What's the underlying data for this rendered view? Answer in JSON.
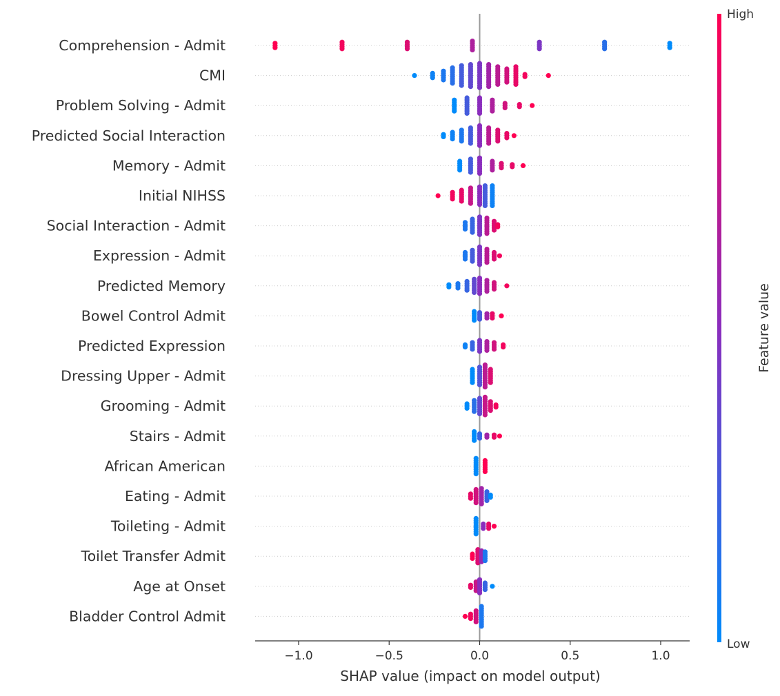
{
  "chart_data": {
    "type": "scatter",
    "subtype": "shap-beeswarm",
    "title": "",
    "xlabel": "SHAP value (impact on model output)",
    "ylabel": "",
    "xlim": [
      -1.24,
      1.16
    ],
    "xticks": [
      -1.0,
      -0.5,
      0.0,
      0.5,
      1.0
    ],
    "xtick_labels": [
      "−1.0",
      "−0.5",
      "0.0",
      "0.5",
      "1.0"
    ],
    "grid": "dotted horizontal row lines",
    "colorbar": {
      "label": "Feature value",
      "high_label": "High",
      "low_label": "Low",
      "high_color": "#ff0052",
      "mid_color": "#8a2dbd",
      "low_color": "#008bfb",
      "position": "right"
    },
    "zero_line_color": "#999999",
    "features": [
      {
        "name": "Comprehension - Admit",
        "points": [
          {
            "x": -1.13,
            "v": 1.0,
            "n": 3
          },
          {
            "x": -0.76,
            "v": 0.95,
            "n": 4
          },
          {
            "x": -0.4,
            "v": 0.85,
            "n": 4
          },
          {
            "x": -0.04,
            "v": 0.65,
            "n": 5
          },
          {
            "x": 0.33,
            "v": 0.45,
            "n": 4
          },
          {
            "x": 0.69,
            "v": 0.15,
            "n": 4
          },
          {
            "x": 1.05,
            "v": 0.0,
            "n": 3
          }
        ]
      },
      {
        "name": "CMI",
        "points": [
          {
            "x": -0.36,
            "v": 0.0,
            "n": 1
          },
          {
            "x": -0.26,
            "v": 0.05,
            "n": 3
          },
          {
            "x": -0.2,
            "v": 0.1,
            "n": 5
          },
          {
            "x": -0.15,
            "v": 0.15,
            "n": 8
          },
          {
            "x": -0.1,
            "v": 0.25,
            "n": 10
          },
          {
            "x": -0.05,
            "v": 0.35,
            "n": 11
          },
          {
            "x": 0.0,
            "v": 0.45,
            "n": 12
          },
          {
            "x": 0.05,
            "v": 0.6,
            "n": 11
          },
          {
            "x": 0.1,
            "v": 0.7,
            "n": 9
          },
          {
            "x": 0.15,
            "v": 0.8,
            "n": 7
          },
          {
            "x": 0.2,
            "v": 0.9,
            "n": 9
          },
          {
            "x": 0.25,
            "v": 0.95,
            "n": 2
          },
          {
            "x": 0.38,
            "v": 1.0,
            "n": 1
          }
        ]
      },
      {
        "name": "Problem Solving - Admit",
        "points": [
          {
            "x": -0.14,
            "v": 0.0,
            "n": 6
          },
          {
            "x": -0.07,
            "v": 0.25,
            "n": 8
          },
          {
            "x": 0.0,
            "v": 0.5,
            "n": 8
          },
          {
            "x": 0.07,
            "v": 0.65,
            "n": 6
          },
          {
            "x": 0.14,
            "v": 0.8,
            "n": 3
          },
          {
            "x": 0.22,
            "v": 0.9,
            "n": 2
          },
          {
            "x": 0.29,
            "v": 1.0,
            "n": 1
          }
        ]
      },
      {
        "name": "Predicted Social Interaction",
        "points": [
          {
            "x": -0.2,
            "v": 0.0,
            "n": 2
          },
          {
            "x": -0.15,
            "v": 0.05,
            "n": 4
          },
          {
            "x": -0.1,
            "v": 0.1,
            "n": 6
          },
          {
            "x": -0.05,
            "v": 0.25,
            "n": 8
          },
          {
            "x": 0.0,
            "v": 0.5,
            "n": 10
          },
          {
            "x": 0.05,
            "v": 0.7,
            "n": 8
          },
          {
            "x": 0.1,
            "v": 0.85,
            "n": 6
          },
          {
            "x": 0.15,
            "v": 0.9,
            "n": 3
          },
          {
            "x": 0.19,
            "v": 1.0,
            "n": 1
          }
        ]
      },
      {
        "name": "Memory - Admit",
        "points": [
          {
            "x": -0.11,
            "v": 0.0,
            "n": 5
          },
          {
            "x": -0.05,
            "v": 0.25,
            "n": 7
          },
          {
            "x": 0.0,
            "v": 0.5,
            "n": 8
          },
          {
            "x": 0.07,
            "v": 0.65,
            "n": 5
          },
          {
            "x": 0.12,
            "v": 0.85,
            "n": 3
          },
          {
            "x": 0.18,
            "v": 0.9,
            "n": 2
          },
          {
            "x": 0.24,
            "v": 1.0,
            "n": 1
          }
        ]
      },
      {
        "name": "Initial NIHSS",
        "points": [
          {
            "x": -0.23,
            "v": 1.0,
            "n": 1
          },
          {
            "x": -0.15,
            "v": 0.95,
            "n": 4
          },
          {
            "x": -0.1,
            "v": 0.9,
            "n": 6
          },
          {
            "x": -0.05,
            "v": 0.75,
            "n": 8
          },
          {
            "x": 0.0,
            "v": 0.5,
            "n": 9
          },
          {
            "x": 0.03,
            "v": 0.25,
            "n": 10
          },
          {
            "x": 0.07,
            "v": 0.05,
            "n": 10
          }
        ]
      },
      {
        "name": "Social Interaction - Admit",
        "points": [
          {
            "x": -0.08,
            "v": 0.1,
            "n": 4
          },
          {
            "x": -0.04,
            "v": 0.2,
            "n": 7
          },
          {
            "x": 0.0,
            "v": 0.45,
            "n": 9
          },
          {
            "x": 0.04,
            "v": 0.7,
            "n": 8
          },
          {
            "x": 0.08,
            "v": 0.85,
            "n": 5
          },
          {
            "x": 0.1,
            "v": 0.95,
            "n": 2
          }
        ]
      },
      {
        "name": "Expression - Admit",
        "points": [
          {
            "x": -0.08,
            "v": 0.1,
            "n": 4
          },
          {
            "x": -0.04,
            "v": 0.25,
            "n": 6
          },
          {
            "x": 0.0,
            "v": 0.45,
            "n": 9
          },
          {
            "x": 0.04,
            "v": 0.7,
            "n": 7
          },
          {
            "x": 0.08,
            "v": 0.85,
            "n": 4
          },
          {
            "x": 0.11,
            "v": 0.95,
            "n": 1
          }
        ]
      },
      {
        "name": "Predicted Memory",
        "points": [
          {
            "x": -0.17,
            "v": 0.0,
            "n": 2
          },
          {
            "x": -0.12,
            "v": 0.1,
            "n": 3
          },
          {
            "x": -0.07,
            "v": 0.2,
            "n": 5
          },
          {
            "x": -0.03,
            "v": 0.35,
            "n": 7
          },
          {
            "x": 0.0,
            "v": 0.5,
            "n": 8
          },
          {
            "x": 0.04,
            "v": 0.65,
            "n": 6
          },
          {
            "x": 0.08,
            "v": 0.8,
            "n": 4
          },
          {
            "x": 0.15,
            "v": 0.95,
            "n": 1
          }
        ]
      },
      {
        "name": "Bowel Control Admit",
        "points": [
          {
            "x": -0.03,
            "v": 0.0,
            "n": 5
          },
          {
            "x": 0.0,
            "v": 0.25,
            "n": 4
          },
          {
            "x": 0.04,
            "v": 0.6,
            "n": 3
          },
          {
            "x": 0.07,
            "v": 0.9,
            "n": 3
          },
          {
            "x": 0.12,
            "v": 1.0,
            "n": 1
          }
        ]
      },
      {
        "name": "Predicted Expression",
        "points": [
          {
            "x": -0.08,
            "v": 0.05,
            "n": 2
          },
          {
            "x": -0.04,
            "v": 0.2,
            "n": 4
          },
          {
            "x": 0.0,
            "v": 0.45,
            "n": 6
          },
          {
            "x": 0.04,
            "v": 0.65,
            "n": 5
          },
          {
            "x": 0.08,
            "v": 0.8,
            "n": 4
          },
          {
            "x": 0.13,
            "v": 0.95,
            "n": 2
          }
        ]
      },
      {
        "name": "Dressing Upper - Admit",
        "points": [
          {
            "x": -0.04,
            "v": 0.0,
            "n": 7
          },
          {
            "x": 0.0,
            "v": 0.3,
            "n": 9
          },
          {
            "x": 0.03,
            "v": 0.7,
            "n": 11
          },
          {
            "x": 0.06,
            "v": 0.85,
            "n": 7
          }
        ]
      },
      {
        "name": "Grooming - Admit",
        "points": [
          {
            "x": -0.07,
            "v": 0.0,
            "n": 3
          },
          {
            "x": -0.03,
            "v": 0.15,
            "n": 6
          },
          {
            "x": 0.0,
            "v": 0.35,
            "n": 8
          },
          {
            "x": 0.03,
            "v": 0.75,
            "n": 9
          },
          {
            "x": 0.06,
            "v": 0.85,
            "n": 5
          },
          {
            "x": 0.09,
            "v": 0.95,
            "n": 2
          }
        ]
      },
      {
        "name": "Stairs - Admit",
        "points": [
          {
            "x": -0.03,
            "v": 0.0,
            "n": 5
          },
          {
            "x": 0.0,
            "v": 0.2,
            "n": 3
          },
          {
            "x": 0.04,
            "v": 0.6,
            "n": 2
          },
          {
            "x": 0.08,
            "v": 0.9,
            "n": 2
          },
          {
            "x": 0.11,
            "v": 1.0,
            "n": 1
          }
        ]
      },
      {
        "name": "African American",
        "points": [
          {
            "x": -0.02,
            "v": 0.0,
            "n": 8
          },
          {
            "x": 0.03,
            "v": 1.0,
            "n": 6
          }
        ]
      },
      {
        "name": "Eating - Admit",
        "points": [
          {
            "x": -0.05,
            "v": 0.9,
            "n": 3
          },
          {
            "x": -0.02,
            "v": 0.8,
            "n": 7
          },
          {
            "x": 0.01,
            "v": 0.6,
            "n": 8
          },
          {
            "x": 0.04,
            "v": 0.2,
            "n": 5
          },
          {
            "x": 0.06,
            "v": 0.0,
            "n": 2
          }
        ]
      },
      {
        "name": "Toileting - Admit",
        "points": [
          {
            "x": -0.02,
            "v": 0.0,
            "n": 8
          },
          {
            "x": 0.02,
            "v": 0.5,
            "n": 3
          },
          {
            "x": 0.05,
            "v": 0.9,
            "n": 3
          },
          {
            "x": 0.08,
            "v": 1.0,
            "n": 1
          }
        ]
      },
      {
        "name": "Toilet Transfer Admit",
        "points": [
          {
            "x": -0.04,
            "v": 1.0,
            "n": 3
          },
          {
            "x": -0.01,
            "v": 0.85,
            "n": 7
          },
          {
            "x": 0.01,
            "v": 0.55,
            "n": 6
          },
          {
            "x": 0.03,
            "v": 0.1,
            "n": 5
          }
        ]
      },
      {
        "name": "Age at Onset",
        "points": [
          {
            "x": -0.05,
            "v": 0.9,
            "n": 2
          },
          {
            "x": -0.02,
            "v": 0.75,
            "n": 5
          },
          {
            "x": 0.0,
            "v": 0.5,
            "n": 7
          },
          {
            "x": 0.03,
            "v": 0.2,
            "n": 4
          },
          {
            "x": 0.07,
            "v": 0.0,
            "n": 1
          }
        ]
      },
      {
        "name": "Bladder Control Admit",
        "points": [
          {
            "x": -0.08,
            "v": 1.0,
            "n": 1
          },
          {
            "x": -0.05,
            "v": 0.95,
            "n": 3
          },
          {
            "x": -0.02,
            "v": 0.8,
            "n": 6
          },
          {
            "x": 0.01,
            "v": 0.1,
            "n": 10
          }
        ]
      }
    ]
  }
}
